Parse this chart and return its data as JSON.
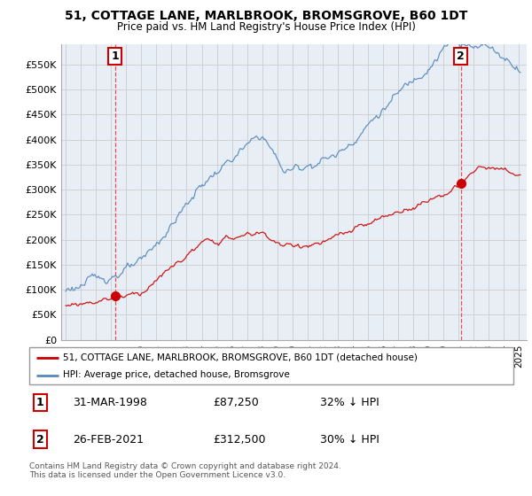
{
  "title": "51, COTTAGE LANE, MARLBROOK, BROMSGROVE, B60 1DT",
  "subtitle": "Price paid vs. HM Land Registry's House Price Index (HPI)",
  "ylabel_ticks": [
    "£0",
    "£50K",
    "£100K",
    "£150K",
    "£200K",
    "£250K",
    "£300K",
    "£350K",
    "£400K",
    "£450K",
    "£500K",
    "£550K"
  ],
  "ytick_values": [
    0,
    50000,
    100000,
    150000,
    200000,
    250000,
    300000,
    350000,
    400000,
    450000,
    500000,
    550000
  ],
  "ylim": [
    0,
    590000
  ],
  "xlim_start": 1994.7,
  "xlim_end": 2025.5,
  "sale1_x": 1998.25,
  "sale1_y": 87250,
  "sale2_x": 2021.15,
  "sale2_y": 312500,
  "sale1_label": "1",
  "sale2_label": "2",
  "red_color": "#cc0000",
  "blue_color": "#5588bb",
  "vline_color": "#ee3333",
  "chart_bg": "#e8eef5",
  "legend_line1": "51, COTTAGE LANE, MARLBROOK, BROMSGROVE, B60 1DT (detached house)",
  "legend_line2": "HPI: Average price, detached house, Bromsgrove",
  "annotation1_date": "31-MAR-1998",
  "annotation1_price": "£87,250",
  "annotation1_hpi": "32% ↓ HPI",
  "annotation2_date": "26-FEB-2021",
  "annotation2_price": "£312,500",
  "annotation2_hpi": "30% ↓ HPI",
  "footer": "Contains HM Land Registry data © Crown copyright and database right 2024.\nThis data is licensed under the Open Government Licence v3.0.",
  "background_color": "#ffffff",
  "grid_color": "#cccccc"
}
